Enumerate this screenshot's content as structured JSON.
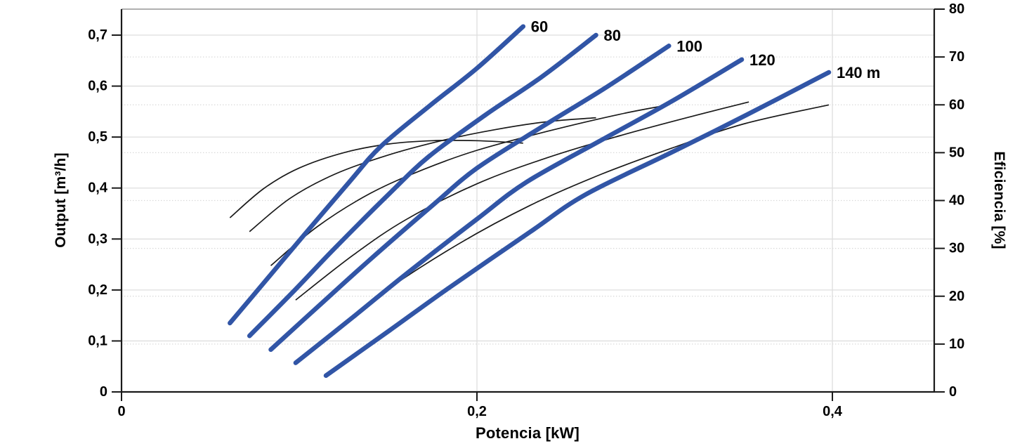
{
  "chart_data": {
    "type": "line",
    "title": "",
    "xlabel": "Potencia [kW]",
    "ylabel_left": "Output [m³/h]",
    "ylabel_right": "Eficiencia [%]",
    "xlim": [
      0,
      0.4573
    ],
    "ylim_left": [
      0,
      0.751
    ],
    "ylim_right": [
      0,
      80
    ],
    "grid": "horizontal solid = left axis majors, horizontal dotted = right axis majors, vertical solid at x majors",
    "legend_position": "none",
    "x_ticks": [
      {
        "v": 0,
        "label": "0"
      },
      {
        "v": 0.2,
        "label": "0,2"
      },
      {
        "v": 0.4,
        "label": "0,4"
      }
    ],
    "y_ticks_left": [
      {
        "v": 0,
        "label": "0"
      },
      {
        "v": 0.1,
        "label": "0,1"
      },
      {
        "v": 0.2,
        "label": "0,2"
      },
      {
        "v": 0.3,
        "label": "0,3"
      },
      {
        "v": 0.4,
        "label": "0,4"
      },
      {
        "v": 0.5,
        "label": "0,5"
      },
      {
        "v": 0.6,
        "label": "0,6"
      },
      {
        "v": 0.7,
        "label": "0,7"
      }
    ],
    "y_ticks_right": [
      {
        "v": 0,
        "label": "0"
      },
      {
        "v": 10,
        "label": "10"
      },
      {
        "v": 20,
        "label": "20"
      },
      {
        "v": 30,
        "label": "30"
      },
      {
        "v": 40,
        "label": "40"
      },
      {
        "v": 50,
        "label": "50"
      },
      {
        "v": 60,
        "label": "60"
      },
      {
        "v": 70,
        "label": "70"
      },
      {
        "v": 80,
        "label": "80"
      }
    ],
    "colors": {
      "head_curve": "#3155A6",
      "efficiency_curve": "#1a1a1a",
      "grid_solid": "#dedede",
      "grid_dotted": "#d8d8d8",
      "plot_top_border": "#b0b0b0",
      "axis": "#1a1a1a",
      "text": "#000000"
    },
    "series": [
      {
        "name": "head-60",
        "label": "60",
        "axis": "left",
        "style": "thick-blue",
        "points": [
          [
            0.061,
            0.135
          ],
          [
            0.082,
            0.222
          ],
          [
            0.102,
            0.305
          ],
          [
            0.128,
            0.411
          ],
          [
            0.146,
            0.482
          ],
          [
            0.174,
            0.563
          ],
          [
            0.2,
            0.635
          ],
          [
            0.226,
            0.717
          ]
        ]
      },
      {
        "name": "head-80",
        "label": "80",
        "axis": "left",
        "style": "thick-blue",
        "points": [
          [
            0.072,
            0.11
          ],
          [
            0.097,
            0.198
          ],
          [
            0.12,
            0.282
          ],
          [
            0.151,
            0.39
          ],
          [
            0.173,
            0.462
          ],
          [
            0.205,
            0.544
          ],
          [
            0.236,
            0.617
          ],
          [
            0.267,
            0.7
          ]
        ]
      },
      {
        "name": "head-100",
        "label": "100",
        "axis": "left",
        "style": "thick-blue",
        "points": [
          [
            0.084,
            0.083
          ],
          [
            0.112,
            0.172
          ],
          [
            0.139,
            0.257
          ],
          [
            0.175,
            0.366
          ],
          [
            0.2,
            0.439
          ],
          [
            0.237,
            0.521
          ],
          [
            0.272,
            0.596
          ],
          [
            0.308,
            0.679
          ]
        ]
      },
      {
        "name": "head-120",
        "label": "120",
        "axis": "left",
        "style": "thick-blue",
        "points": [
          [
            0.098,
            0.057
          ],
          [
            0.13,
            0.146
          ],
          [
            0.16,
            0.231
          ],
          [
            0.2,
            0.339
          ],
          [
            0.228,
            0.412
          ],
          [
            0.27,
            0.494
          ],
          [
            0.309,
            0.569
          ],
          [
            0.349,
            0.652
          ]
        ]
      },
      {
        "name": "head-140",
        "label": "140 m",
        "axis": "left",
        "style": "thick-blue",
        "points": [
          [
            0.115,
            0.032
          ],
          [
            0.151,
            0.121
          ],
          [
            0.185,
            0.206
          ],
          [
            0.23,
            0.314
          ],
          [
            0.261,
            0.387
          ],
          [
            0.309,
            0.469
          ],
          [
            0.352,
            0.544
          ],
          [
            0.398,
            0.627
          ]
        ]
      },
      {
        "name": "eff-60",
        "label": "",
        "axis": "right",
        "style": "thin-black",
        "points": [
          [
            0.061,
            36.4
          ],
          [
            0.08,
            42.5
          ],
          [
            0.1,
            46.8
          ],
          [
            0.125,
            50.0
          ],
          [
            0.15,
            51.8
          ],
          [
            0.175,
            52.5
          ],
          [
            0.2,
            52.5
          ],
          [
            0.226,
            52.0
          ]
        ]
      },
      {
        "name": "eff-80",
        "label": "",
        "axis": "right",
        "style": "thin-black",
        "points": [
          [
            0.072,
            33.5
          ],
          [
            0.095,
            40.5
          ],
          [
            0.12,
            45.5
          ],
          [
            0.15,
            49.5
          ],
          [
            0.18,
            52.5
          ],
          [
            0.21,
            54.8
          ],
          [
            0.24,
            56.5
          ],
          [
            0.267,
            57.3
          ]
        ]
      },
      {
        "name": "eff-100",
        "label": "",
        "axis": "right",
        "style": "thin-black",
        "points": [
          [
            0.084,
            26.4
          ],
          [
            0.11,
            34.5
          ],
          [
            0.14,
            41.5
          ],
          [
            0.17,
            46.5
          ],
          [
            0.2,
            50.5
          ],
          [
            0.24,
            54.5
          ],
          [
            0.28,
            58.0
          ],
          [
            0.308,
            60.0
          ]
        ]
      },
      {
        "name": "eff-120",
        "label": "",
        "axis": "right",
        "style": "thin-black",
        "points": [
          [
            0.098,
            19.2
          ],
          [
            0.13,
            28.5
          ],
          [
            0.16,
            36.0
          ],
          [
            0.2,
            43.5
          ],
          [
            0.24,
            49.0
          ],
          [
            0.28,
            53.5
          ],
          [
            0.32,
            57.5
          ],
          [
            0.353,
            60.6
          ]
        ]
      },
      {
        "name": "eff-140",
        "label": "",
        "axis": "right",
        "style": "thin-black",
        "points": [
          [
            0.115,
            11.5
          ],
          [
            0.15,
            21.5
          ],
          [
            0.19,
            31.0
          ],
          [
            0.23,
            39.0
          ],
          [
            0.27,
            45.5
          ],
          [
            0.31,
            51.0
          ],
          [
            0.35,
            56.0
          ],
          [
            0.398,
            60.0
          ]
        ]
      }
    ]
  }
}
